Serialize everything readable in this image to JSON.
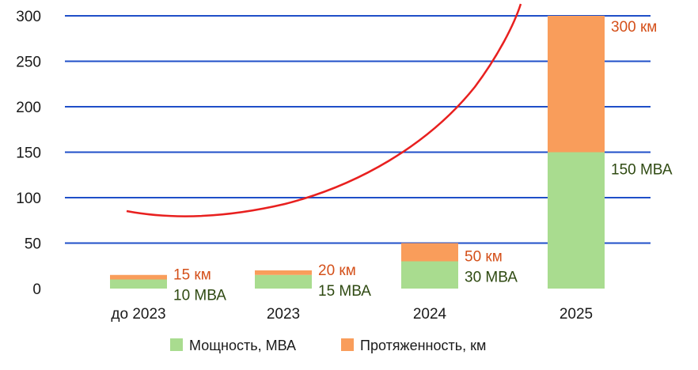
{
  "chart_data": {
    "type": "bar",
    "stacked": true,
    "categories": [
      "до 2023",
      "2023",
      "2024",
      "2025"
    ],
    "series": [
      {
        "name": "Мощность, МВА",
        "values": [
          10,
          15,
          30,
          150
        ],
        "color": "#a9dc8f"
      },
      {
        "name": "Протяженность, км",
        "values": [
          5,
          5,
          20,
          150
        ],
        "color": "#f99d5b"
      }
    ],
    "labels": {
      "power": [
        "10 МВА",
        "15 МВА",
        "30 МВА",
        "150 МВА"
      ],
      "length": [
        "15 км",
        "20 км",
        "50 км",
        "300 км"
      ]
    },
    "label_colors": {
      "power": "#2f4a12",
      "length": "#d4501a"
    },
    "ylim": [
      0,
      300
    ],
    "yticks": [
      "0",
      "50",
      "100",
      "150",
      "200",
      "250",
      "300"
    ],
    "grid": true,
    "grid_color": "#1f4fc8",
    "trend_color": "#e8201f",
    "legend": {
      "placement": "bottom",
      "items": [
        "Мощность, МВА",
        "Протяженность, км"
      ]
    }
  }
}
